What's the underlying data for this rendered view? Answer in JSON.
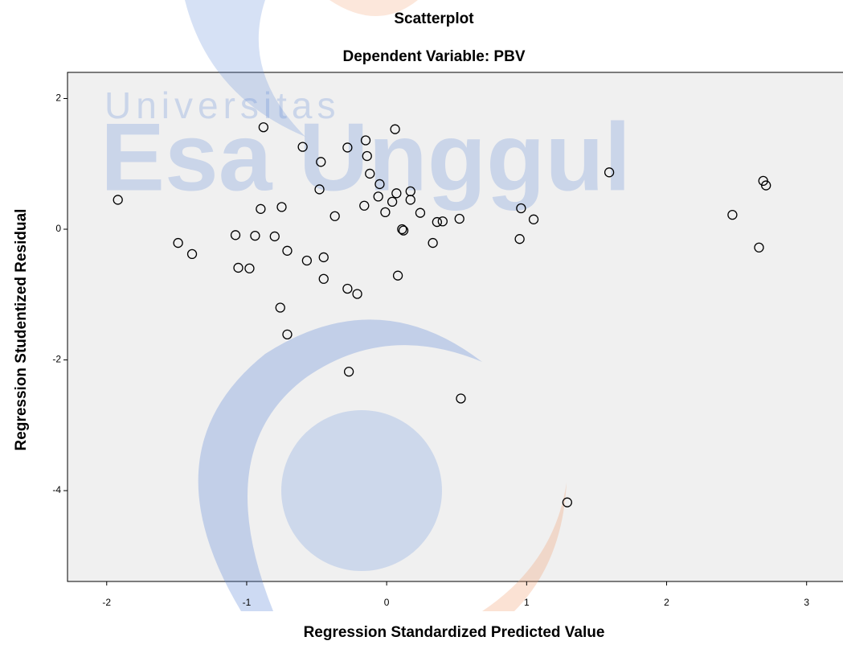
{
  "chart_data": {
    "type": "scatter",
    "title": "Scatterplot",
    "subtitle": "Dependent Variable: PBV",
    "x_label": "Regression Standardized Predicted Value",
    "y_label": "Regression Studentized Residual",
    "watermark": [
      "Universitas",
      "Esa Unggul"
    ],
    "x": [
      -1.92,
      -1.49,
      -1.39,
      -1.08,
      -1.06,
      -0.98,
      -0.94,
      -0.9,
      -0.88,
      -0.8,
      -0.75,
      -0.76,
      -0.71,
      -0.71,
      -0.6,
      -0.57,
      -0.48,
      -0.47,
      -0.45,
      -0.45,
      -0.37,
      -0.28,
      -0.28,
      -0.27,
      -0.21,
      -0.16,
      -0.15,
      -0.14,
      -0.12,
      -0.06,
      -0.05,
      -0.01,
      0.04,
      0.06,
      0.07,
      0.08,
      0.11,
      0.12,
      0.17,
      0.17,
      0.24,
      0.33,
      0.36,
      0.4,
      0.52,
      0.53,
      0.95,
      0.96,
      1.05,
      1.29,
      1.59,
      2.47,
      2.66,
      2.69,
      2.71
    ],
    "values": [
      0.45,
      -0.21,
      -0.38,
      -0.09,
      -0.59,
      -0.6,
      -0.1,
      0.31,
      1.56,
      -0.11,
      0.34,
      -1.2,
      -0.33,
      -1.61,
      1.26,
      -0.48,
      0.61,
      1.03,
      -0.43,
      -0.76,
      0.2,
      -0.91,
      1.25,
      -2.18,
      -0.99,
      0.36,
      1.36,
      1.12,
      0.85,
      0.5,
      0.69,
      0.26,
      0.42,
      1.53,
      0.55,
      -0.71,
      0.0,
      -0.02,
      0.58,
      0.45,
      0.25,
      -0.21,
      0.11,
      0.12,
      0.16,
      -2.59,
      -0.15,
      0.32,
      0.15,
      -4.18,
      0.87,
      0.22,
      -0.28,
      0.74,
      0.67
    ],
    "color": "#000000",
    "background": "#f0f0f0",
    "xlim": [
      -2.28,
      3.26
    ],
    "xticks": [
      -2,
      -1,
      0,
      1,
      2,
      3
    ],
    "ylim": [
      -5.39,
      2.4
    ],
    "yticks": [
      -4,
      -2,
      0,
      2
    ]
  }
}
